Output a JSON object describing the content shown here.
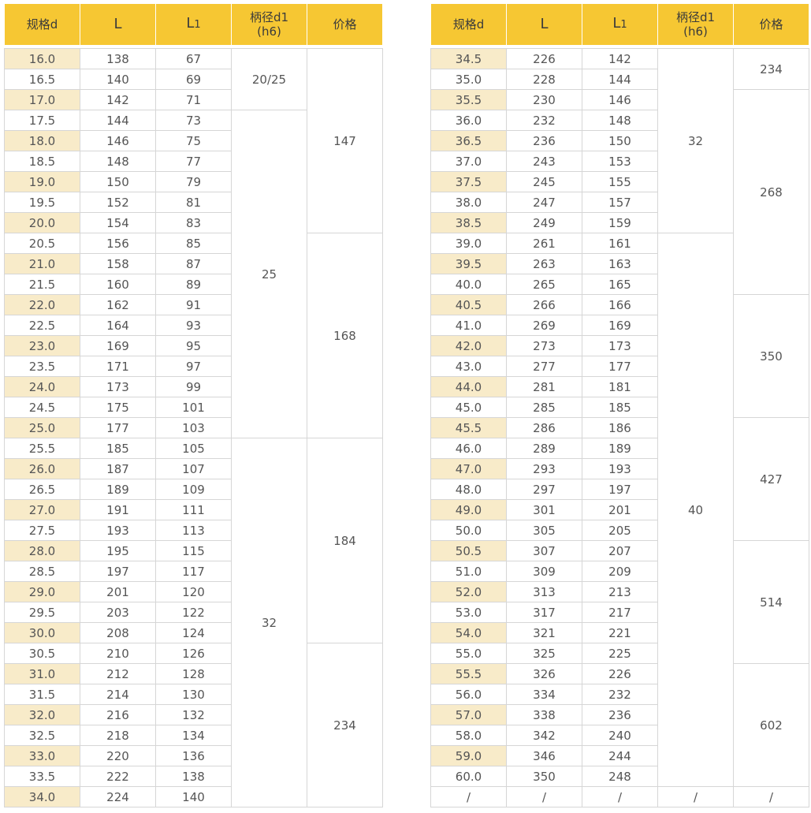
{
  "headers": {
    "spec": "规格d",
    "l": "L",
    "l1_main": "L",
    "l1_sub": "1",
    "shank_line1": "柄径d1",
    "shank_line2": "(h6)",
    "price": "价格"
  },
  "left_table": {
    "rows": [
      [
        "16.0",
        "138",
        "67"
      ],
      [
        "16.5",
        "140",
        "69"
      ],
      [
        "17.0",
        "142",
        "71"
      ],
      [
        "17.5",
        "144",
        "73"
      ],
      [
        "18.0",
        "146",
        "75"
      ],
      [
        "18.5",
        "148",
        "77"
      ],
      [
        "19.0",
        "150",
        "79"
      ],
      [
        "19.5",
        "152",
        "81"
      ],
      [
        "20.0",
        "154",
        "83"
      ],
      [
        "20.5",
        "156",
        "85"
      ],
      [
        "21.0",
        "158",
        "87"
      ],
      [
        "21.5",
        "160",
        "89"
      ],
      [
        "22.0",
        "162",
        "91"
      ],
      [
        "22.5",
        "164",
        "93"
      ],
      [
        "23.0",
        "169",
        "95"
      ],
      [
        "23.5",
        "171",
        "97"
      ],
      [
        "24.0",
        "173",
        "99"
      ],
      [
        "24.5",
        "175",
        "101"
      ],
      [
        "25.0",
        "177",
        "103"
      ],
      [
        "25.5",
        "185",
        "105"
      ],
      [
        "26.0",
        "187",
        "107"
      ],
      [
        "26.5",
        "189",
        "109"
      ],
      [
        "27.0",
        "191",
        "111"
      ],
      [
        "27.5",
        "193",
        "113"
      ],
      [
        "28.0",
        "195",
        "115"
      ],
      [
        "28.5",
        "197",
        "117"
      ],
      [
        "29.0",
        "201",
        "120"
      ],
      [
        "29.5",
        "203",
        "122"
      ],
      [
        "30.0",
        "208",
        "124"
      ],
      [
        "30.5",
        "210",
        "126"
      ],
      [
        "31.0",
        "212",
        "128"
      ],
      [
        "31.5",
        "214",
        "130"
      ],
      [
        "32.0",
        "216",
        "132"
      ],
      [
        "32.5",
        "218",
        "134"
      ],
      [
        "33.0",
        "220",
        "136"
      ],
      [
        "33.5",
        "222",
        "138"
      ],
      [
        "34.0",
        "224",
        "140"
      ]
    ],
    "shank_groups": [
      {
        "value": "20/25",
        "rows": 3
      },
      {
        "value": "25",
        "rows": 16
      },
      {
        "value": "32",
        "rows": 18
      }
    ],
    "price_groups": [
      {
        "value": "147",
        "rows": 9
      },
      {
        "value": "168",
        "rows": 10
      },
      {
        "value": "184",
        "rows": 10
      },
      {
        "value": "234",
        "rows": 8
      }
    ]
  },
  "right_table": {
    "rows": [
      [
        "34.5",
        "226",
        "142"
      ],
      [
        "35.0",
        "228",
        "144"
      ],
      [
        "35.5",
        "230",
        "146"
      ],
      [
        "36.0",
        "232",
        "148"
      ],
      [
        "36.5",
        "236",
        "150"
      ],
      [
        "37.0",
        "243",
        "153"
      ],
      [
        "37.5",
        "245",
        "155"
      ],
      [
        "38.0",
        "247",
        "157"
      ],
      [
        "38.5",
        "249",
        "159"
      ],
      [
        "39.0",
        "261",
        "161"
      ],
      [
        "39.5",
        "263",
        "163"
      ],
      [
        "40.0",
        "265",
        "165"
      ],
      [
        "40.5",
        "266",
        "166"
      ],
      [
        "41.0",
        "269",
        "169"
      ],
      [
        "42.0",
        "273",
        "173"
      ],
      [
        "43.0",
        "277",
        "177"
      ],
      [
        "44.0",
        "281",
        "181"
      ],
      [
        "45.0",
        "285",
        "185"
      ],
      [
        "45.5",
        "286",
        "186"
      ],
      [
        "46.0",
        "289",
        "189"
      ],
      [
        "47.0",
        "293",
        "193"
      ],
      [
        "48.0",
        "297",
        "197"
      ],
      [
        "49.0",
        "301",
        "201"
      ],
      [
        "50.0",
        "305",
        "205"
      ],
      [
        "50.5",
        "307",
        "207"
      ],
      [
        "51.0",
        "309",
        "209"
      ],
      [
        "52.0",
        "313",
        "213"
      ],
      [
        "53.0",
        "317",
        "217"
      ],
      [
        "54.0",
        "321",
        "221"
      ],
      [
        "55.0",
        "325",
        "225"
      ],
      [
        "55.5",
        "326",
        "226"
      ],
      [
        "56.0",
        "334",
        "232"
      ],
      [
        "57.0",
        "338",
        "236"
      ],
      [
        "58.0",
        "342",
        "240"
      ],
      [
        "59.0",
        "346",
        "244"
      ],
      [
        "60.0",
        "350",
        "248"
      ]
    ],
    "shank_groups": [
      {
        "value": "32",
        "rows": 9
      },
      {
        "value": "40",
        "rows": 27
      }
    ],
    "price_groups": [
      {
        "value": "234",
        "rows": 2
      },
      {
        "value": "268",
        "rows": 10
      },
      {
        "value": "350",
        "rows": 6
      },
      {
        "value": "427",
        "rows": 6
      },
      {
        "value": "514",
        "rows": 6
      },
      {
        "value": "602",
        "rows": 6
      }
    ],
    "footer": [
      "/",
      "/",
      "/",
      "/",
      "/"
    ]
  }
}
